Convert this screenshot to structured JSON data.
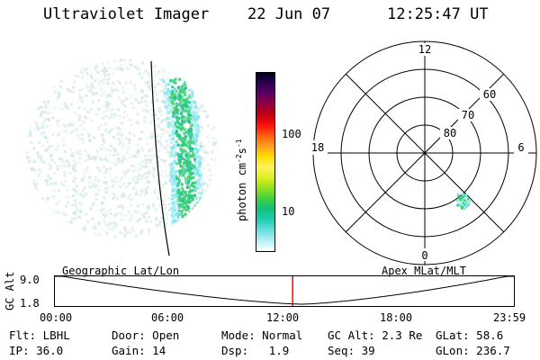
{
  "header": {
    "instrument": "Ultraviolet Imager",
    "date": "22 Jun 07",
    "time": "12:25:47 UT"
  },
  "colorbar": {
    "unit_label_main": "photon cm",
    "unit_sup1": "-2",
    "unit_mid": "s",
    "unit_sup2": "-1",
    "ticks": [
      {
        "value": 100,
        "label": "100"
      },
      {
        "value": 10,
        "label": "10"
      }
    ],
    "colors_bottom_to_top": [
      "#ffffff",
      "#b3f0f5",
      "#66dde0",
      "#22cdb0",
      "#10c080",
      "#40d040",
      "#90e020",
      "#e0f020",
      "#fff060",
      "#ffe000",
      "#ffa020",
      "#ff6010",
      "#ff1010",
      "#c00010",
      "#900040",
      "#600060",
      "#300050",
      "#000020"
    ]
  },
  "polar_plot": {
    "hour_labels": [
      {
        "label": "12",
        "pos": "top"
      },
      {
        "label": "18",
        "pos": "left"
      },
      {
        "label": "6",
        "pos": "right"
      },
      {
        "label": "0",
        "pos": "bottom"
      }
    ],
    "lat_labels": [
      "60",
      "70",
      "80"
    ]
  },
  "timeline": {
    "left_label": "Geographic Lat/Lon",
    "right_label": "Apex  MLat/MLT",
    "axis_title": "GC Alt",
    "y_max": "9.0",
    "y_min": "1.8",
    "x_ticks": [
      "00:00",
      "06:00",
      "12:00",
      "18:00",
      "23:59"
    ],
    "current_time_hours": 12.43
  },
  "footer": {
    "row1": [
      {
        "key": "Flt:",
        "val": "LBHL"
      },
      {
        "key": "Door:",
        "val": "Open"
      },
      {
        "key": "Mode:",
        "val": "Normal"
      },
      {
        "key": "GC Alt:",
        "val": "2.3 Re"
      },
      {
        "key": "GLat:",
        "val": "58.6"
      }
    ],
    "row2": [
      {
        "key": "IP:",
        "val": "36.0"
      },
      {
        "key": "Gain:",
        "val": "14"
      },
      {
        "key": "Dsp:",
        "val": "1.9"
      },
      {
        "key": "Seq:",
        "val": "39"
      },
      {
        "key": "GLon:",
        "val": "236.7"
      }
    ]
  },
  "colors": {
    "limb_line": "#000000",
    "time_marker": "#ff0000",
    "aurora_green": "#3ad070",
    "aurora_cyan": "#7ee6ee"
  }
}
